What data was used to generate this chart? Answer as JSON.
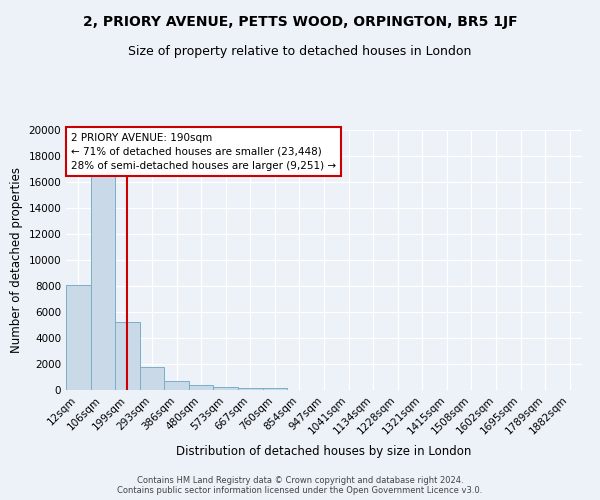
{
  "title": "2, PRIORY AVENUE, PETTS WOOD, ORPINGTON, BR5 1JF",
  "subtitle": "Size of property relative to detached houses in London",
  "xlabel": "Distribution of detached houses by size in London",
  "ylabel": "Number of detached properties",
  "categories": [
    "12sqm",
    "106sqm",
    "199sqm",
    "293sqm",
    "386sqm",
    "480sqm",
    "573sqm",
    "667sqm",
    "760sqm",
    "854sqm",
    "947sqm",
    "1041sqm",
    "1134sqm",
    "1228sqm",
    "1321sqm",
    "1415sqm",
    "1508sqm",
    "1602sqm",
    "1695sqm",
    "1789sqm",
    "1882sqm"
  ],
  "values": [
    8050,
    16600,
    5250,
    1750,
    680,
    350,
    200,
    150,
    130,
    0,
    0,
    0,
    0,
    0,
    0,
    0,
    0,
    0,
    0,
    0,
    0
  ],
  "bar_color": "#c9d9e8",
  "bar_edge_color": "#7aaec8",
  "red_line_index": 2,
  "annotation_text": "2 PRIORY AVENUE: 190sqm\n← 71% of detached houses are smaller (23,448)\n28% of semi-detached houses are larger (9,251) →",
  "annotation_box_color": "#ffffff",
  "annotation_box_edge": "#cc0000",
  "ylim": [
    0,
    20000
  ],
  "yticks": [
    0,
    2000,
    4000,
    6000,
    8000,
    10000,
    12000,
    14000,
    16000,
    18000,
    20000
  ],
  "bg_color": "#edf2f8",
  "plot_bg_color": "#edf2f8",
  "footer": "Contains HM Land Registry data © Crown copyright and database right 2024.\nContains public sector information licensed under the Open Government Licence v3.0.",
  "title_fontsize": 10,
  "subtitle_fontsize": 9,
  "axis_label_fontsize": 8.5,
  "tick_fontsize": 7.5,
  "annotation_fontsize": 7.5,
  "footer_fontsize": 6
}
